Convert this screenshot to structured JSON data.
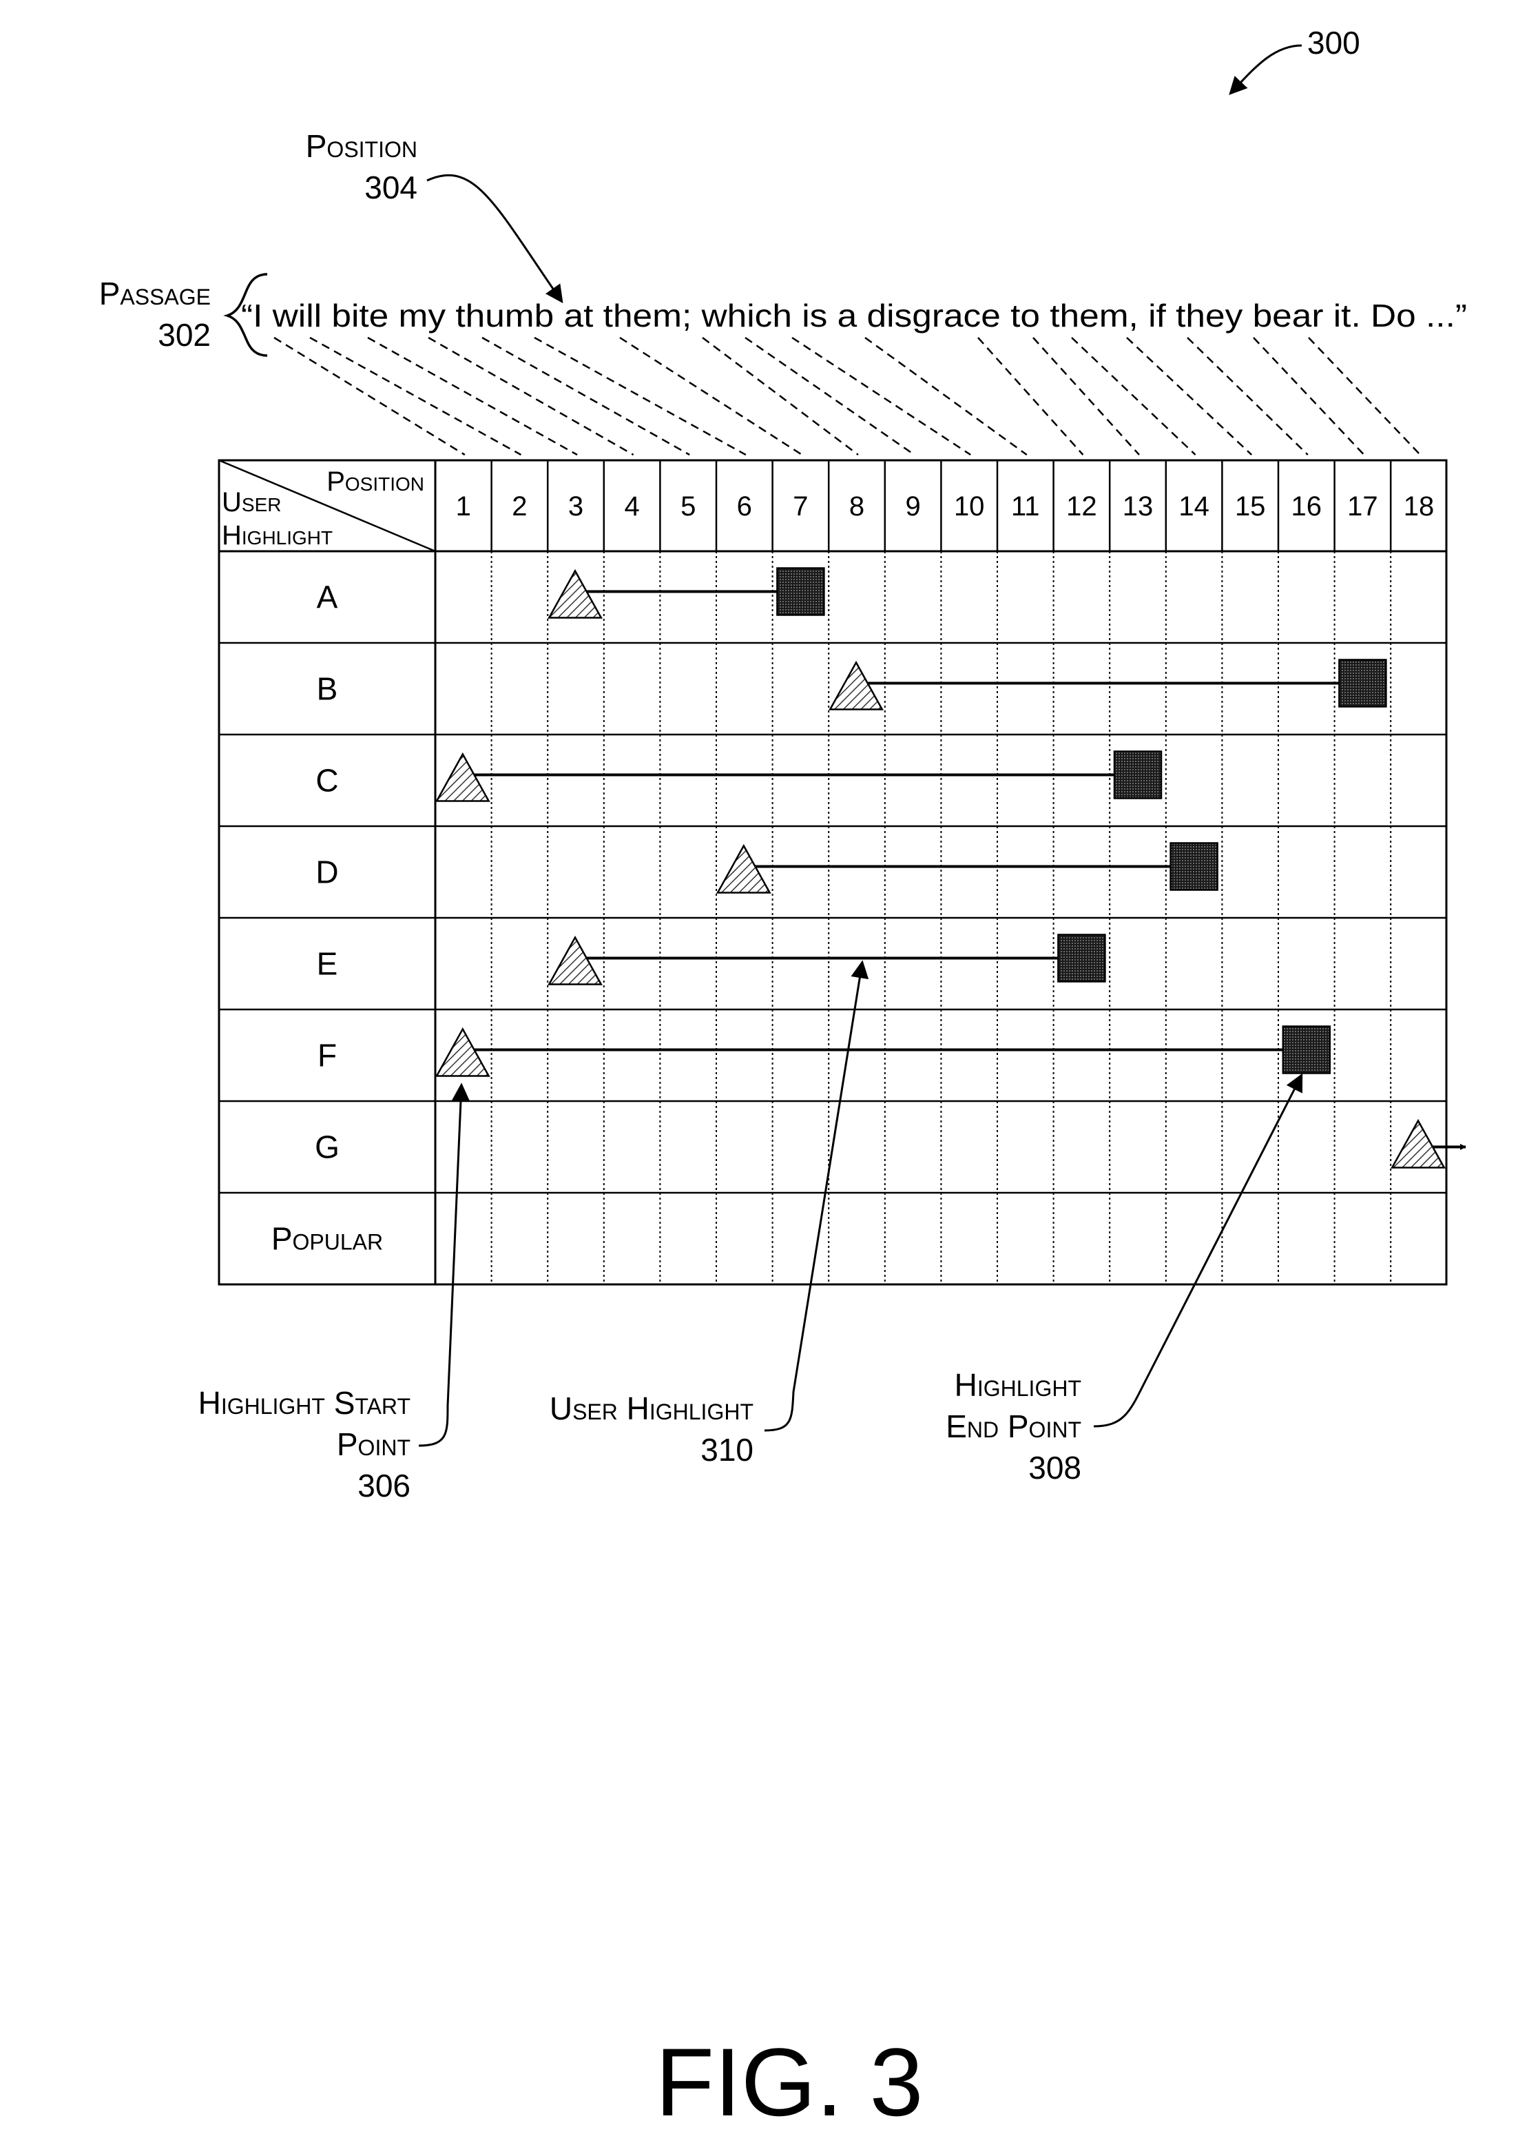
{
  "figure_ref": "300",
  "position_label": {
    "text": "Position",
    "ref": "304"
  },
  "passage_label": {
    "text": "Passage",
    "ref": "302"
  },
  "passage_text": "“I will bite my thumb at them; which is a disgrace to them, if they bear it.  Do ...”",
  "table": {
    "header_position": "Position",
    "header_user": "User",
    "header_highlight": "Highlight",
    "positions": [
      "1",
      "2",
      "3",
      "4",
      "5",
      "6",
      "7",
      "8",
      "9",
      "10",
      "11",
      "12",
      "13",
      "14",
      "15",
      "16",
      "17",
      "18"
    ],
    "rows": [
      {
        "label": "A",
        "start": 3,
        "end": 7
      },
      {
        "label": "B",
        "start": 8,
        "end": 17
      },
      {
        "label": "C",
        "start": 1,
        "end": 13
      },
      {
        "label": "D",
        "start": 6,
        "end": 14
      },
      {
        "label": "E",
        "start": 3,
        "end": 12
      },
      {
        "label": "F",
        "start": 1,
        "end": 16
      },
      {
        "label": "G",
        "start": 18,
        "end": null,
        "continues": true
      },
      {
        "label": "Popular",
        "start": null,
        "end": null
      }
    ]
  },
  "callouts": {
    "start_point": {
      "line1": "Highlight Start",
      "line2": "Point",
      "ref": "306"
    },
    "user_highlight": {
      "line1": "User Highlight",
      "ref": "310"
    },
    "end_point": {
      "line1": "Highlight",
      "line2": "End Point",
      "ref": "308"
    }
  },
  "figure_caption": "FIG. 3"
}
